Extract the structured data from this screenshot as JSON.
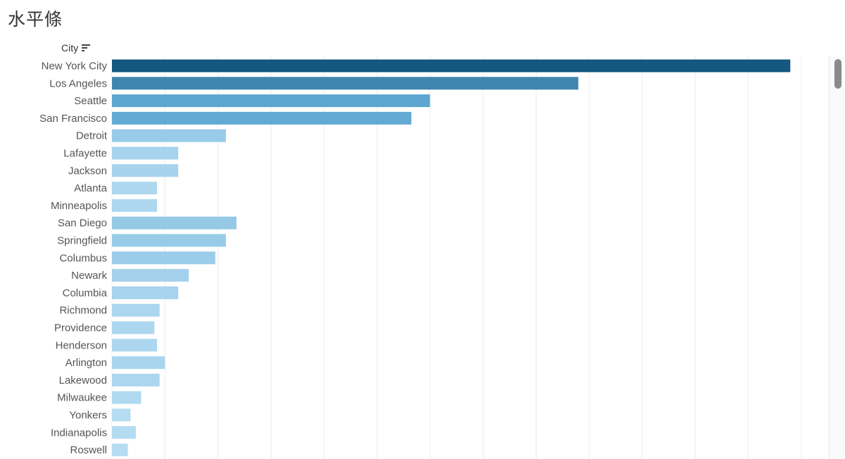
{
  "title": "水平條",
  "field_header": "City",
  "icons": {
    "sort": "sort-descending-icon"
  },
  "chart_data": {
    "type": "bar",
    "orientation": "horizontal",
    "categories": [
      "New York City",
      "Los Angeles",
      "Seattle",
      "San Francisco",
      "Detroit",
      "Lafayette",
      "Jackson",
      "Atlanta",
      "Minneapolis",
      "San Diego",
      "Springfield",
      "Columbus",
      "Newark",
      "Columbia",
      "Richmond",
      "Providence",
      "Henderson",
      "Arlington",
      "Lakewood",
      "Milwaukee",
      "Yonkers",
      "Indianapolis",
      "Roswell"
    ],
    "values": [
      256,
      176,
      120,
      113,
      43,
      25,
      25,
      17,
      17,
      47,
      43,
      39,
      29,
      25,
      18,
      16,
      17,
      20,
      18,
      11,
      7,
      9,
      6
    ],
    "xlim": [
      0,
      270
    ],
    "grid": true,
    "color_scale": {
      "low": "#b5dcf2",
      "mid": "#5ea7d2",
      "high": "#14577f"
    }
  }
}
